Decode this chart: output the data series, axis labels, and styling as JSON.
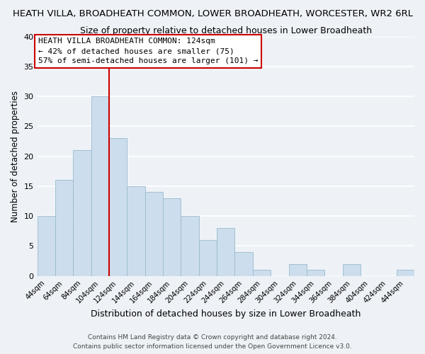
{
  "title": "HEATH VILLA, BROADHEATH COMMON, LOWER BROADHEATH, WORCESTER, WR2 6RL",
  "subtitle": "Size of property relative to detached houses in Lower Broadheath",
  "xlabel": "Distribution of detached houses by size in Lower Broadheath",
  "ylabel": "Number of detached properties",
  "bin_labels": [
    "44sqm",
    "64sqm",
    "84sqm",
    "104sqm",
    "124sqm",
    "144sqm",
    "164sqm",
    "184sqm",
    "204sqm",
    "224sqm",
    "244sqm",
    "264sqm",
    "284sqm",
    "304sqm",
    "324sqm",
    "344sqm",
    "364sqm",
    "384sqm",
    "404sqm",
    "424sqm",
    "444sqm"
  ],
  "bar_heights": [
    10,
    16,
    21,
    30,
    23,
    15,
    14,
    13,
    10,
    6,
    8,
    4,
    1,
    0,
    2,
    1,
    0,
    2,
    0,
    0,
    1
  ],
  "bar_color": "#ccdded",
  "bar_edge_color": "#99bbcc",
  "vline_color": "#cc0000",
  "annotation_text": "HEATH VILLA BROADHEATH COMMON: 124sqm\n← 42% of detached houses are smaller (75)\n57% of semi-detached houses are larger (101) →",
  "annotation_box_color": "#ffffff",
  "annotation_box_edge": "#cc0000",
  "ylim": [
    0,
    40
  ],
  "yticks": [
    0,
    5,
    10,
    15,
    20,
    25,
    30,
    35,
    40
  ],
  "background_color": "#eef2f7",
  "grid_color": "#ffffff",
  "footer_line1": "Contains HM Land Registry data © Crown copyright and database right 2024.",
  "footer_line2": "Contains public sector information licensed under the Open Government Licence v3.0."
}
